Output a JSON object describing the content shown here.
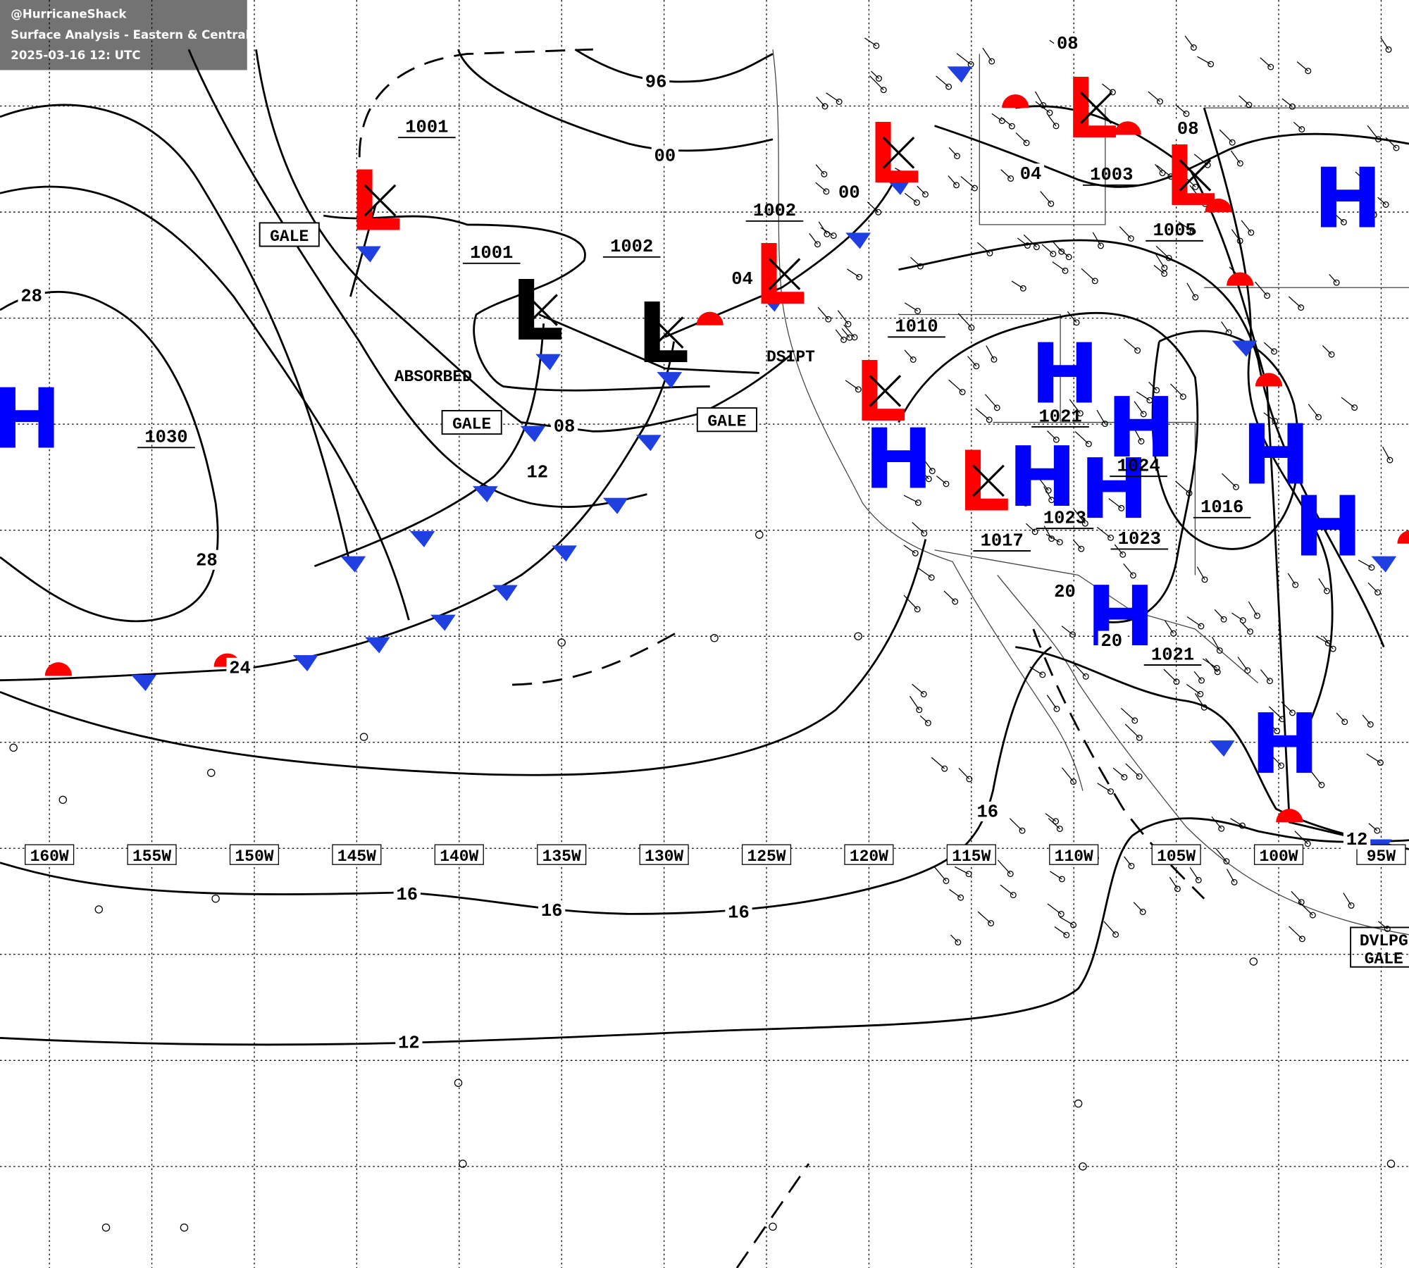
{
  "header": {
    "source": "@HurricaneShack",
    "title": "Surface Analysis - Eastern & Central Pacific Ocean",
    "timestamp": "2025-03-16 12: UTC"
  },
  "longitudes": [
    "160W",
    "155W",
    "150W",
    "145W",
    "140W",
    "135W",
    "130W",
    "125W",
    "120W",
    "115W",
    "110W",
    "105W",
    "100W",
    "95W"
  ],
  "centers": [
    {
      "letter": "L",
      "color": "#ff0000"
    },
    {
      "letter": "L",
      "color": "#000000"
    },
    {
      "letter": "L",
      "color": "#000000"
    },
    {
      "letter": "L",
      "color": "#ff0000"
    },
    {
      "letter": "L",
      "color": "#ff0000"
    },
    {
      "letter": "L",
      "color": "#ff0000"
    },
    {
      "letter": "L",
      "color": "#ff0000"
    },
    {
      "letter": "L",
      "color": "#ff0000"
    },
    {
      "letter": "L",
      "color": "#ff0000"
    },
    {
      "letter": "H",
      "color": "#0000ff"
    },
    {
      "letter": "H",
      "color": "#0000ff"
    },
    {
      "letter": "H",
      "color": "#0000ff"
    },
    {
      "letter": "H",
      "color": "#0000ff"
    },
    {
      "letter": "H",
      "color": "#0000ff"
    },
    {
      "letter": "H",
      "color": "#0000ff"
    },
    {
      "letter": "H",
      "color": "#0000ff"
    },
    {
      "letter": "H",
      "color": "#0000ff"
    },
    {
      "letter": "H",
      "color": "#0000ff"
    },
    {
      "letter": "H",
      "color": "#0000ff"
    },
    {
      "letter": "H",
      "color": "#0000ff"
    }
  ],
  "center_pressures": [
    "1001",
    "1001",
    "1002",
    "1030",
    "1002",
    "1003",
    "1005",
    "1010",
    "1021",
    "1024",
    "1023",
    "1023",
    "1016",
    "1017",
    "1021"
  ],
  "isobar_labels": [
    "96",
    "00",
    "28",
    "28",
    "08",
    "12",
    "24",
    "04",
    "00",
    "04",
    "08",
    "08",
    "20",
    "20",
    "16",
    "16",
    "16",
    "16",
    "12",
    "12"
  ],
  "annotations": [
    "GALE",
    "GALE",
    "GALE",
    "ABSORBED",
    "DSIPT",
    "DVLPG",
    "GALE"
  ]
}
